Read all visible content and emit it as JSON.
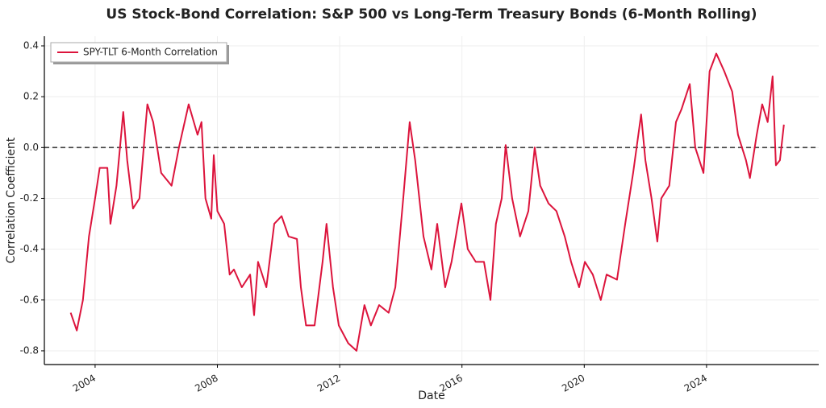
{
  "chart_data": {
    "type": "line",
    "title": "US Stock-Bond Correlation: S&P 500 vs Long-Term Treasury Bonds (6-Month Rolling)",
    "x_label": "Date",
    "y_label": "Correlation Coefficient",
    "x": [
      2003.2,
      2003.4,
      2003.6,
      2003.8,
      2004.0,
      2004.15,
      2004.4,
      2004.5,
      2004.7,
      2004.92,
      2005.05,
      2005.24,
      2005.45,
      2005.71,
      2005.9,
      2006.16,
      2006.5,
      2006.74,
      2007.06,
      2007.35,
      2007.48,
      2007.61,
      2007.8,
      2007.88,
      2008.0,
      2008.22,
      2008.4,
      2008.54,
      2008.8,
      2009.07,
      2009.2,
      2009.33,
      2009.6,
      2009.86,
      2010.1,
      2010.33,
      2010.6,
      2010.73,
      2010.9,
      2011.18,
      2011.44,
      2011.57,
      2011.78,
      2011.97,
      2012.28,
      2012.55,
      2012.81,
      2013.02,
      2013.29,
      2013.6,
      2013.82,
      2014.08,
      2014.29,
      2014.47,
      2014.74,
      2015.0,
      2015.19,
      2015.45,
      2015.66,
      2015.98,
      2016.19,
      2016.45,
      2016.72,
      2016.93,
      2017.11,
      2017.3,
      2017.43,
      2017.64,
      2017.9,
      2018.17,
      2018.38,
      2018.56,
      2018.83,
      2019.09,
      2019.36,
      2019.57,
      2019.83,
      2020.02,
      2020.28,
      2020.54,
      2020.73,
      2021.07,
      2021.34,
      2021.6,
      2021.86,
      2022.0,
      2022.2,
      2022.39,
      2022.52,
      2022.78,
      2023.0,
      2023.18,
      2023.45,
      2023.63,
      2023.9,
      2024.1,
      2024.32,
      2024.58,
      2024.84,
      2025.03,
      2025.29,
      2025.42,
      2025.64,
      2025.82,
      2026.0,
      2026.16,
      2026.27,
      2026.4,
      2026.53
    ],
    "series": [
      {
        "name": "SPY-TLT 6-Month Correlation",
        "color": "#dc143c",
        "values": [
          -0.65,
          -0.72,
          -0.6,
          -0.35,
          -0.2,
          -0.08,
          -0.08,
          -0.3,
          -0.15,
          0.14,
          -0.05,
          -0.24,
          -0.2,
          0.17,
          0.1,
          -0.1,
          -0.15,
          0.0,
          0.17,
          0.05,
          0.1,
          -0.2,
          -0.28,
          -0.03,
          -0.25,
          -0.3,
          -0.5,
          -0.48,
          -0.55,
          -0.5,
          -0.66,
          -0.45,
          -0.55,
          -0.3,
          -0.27,
          -0.35,
          -0.36,
          -0.55,
          -0.7,
          -0.7,
          -0.45,
          -0.3,
          -0.55,
          -0.7,
          -0.77,
          -0.8,
          -0.62,
          -0.7,
          -0.62,
          -0.65,
          -0.55,
          -0.2,
          0.1,
          -0.05,
          -0.35,
          -0.48,
          -0.3,
          -0.55,
          -0.45,
          -0.22,
          -0.4,
          -0.45,
          -0.45,
          -0.6,
          -0.3,
          -0.2,
          0.01,
          -0.2,
          -0.35,
          -0.25,
          0.0,
          -0.15,
          -0.22,
          -0.25,
          -0.35,
          -0.45,
          -0.55,
          -0.45,
          -0.5,
          -0.6,
          -0.5,
          -0.52,
          -0.3,
          -0.1,
          0.13,
          -0.05,
          -0.2,
          -0.37,
          -0.2,
          -0.15,
          0.1,
          0.15,
          0.25,
          0.0,
          -0.1,
          0.3,
          0.37,
          0.3,
          0.22,
          0.05,
          -0.05,
          -0.12,
          0.05,
          0.17,
          0.1,
          0.28,
          -0.07,
          -0.05,
          0.09
        ]
      }
    ],
    "hline": 0,
    "xlim": [
      2002.34,
      2027.67
    ],
    "xticks": [
      2004,
      2008,
      2012,
      2016,
      2020,
      2024
    ],
    "ylim": [
      -0.854,
      0.438
    ],
    "yticks": [
      -0.8,
      -0.6,
      -0.4,
      -0.2,
      {
        "value": 0,
        "label": "0.0"
      },
      0.2,
      0.4
    ],
    "grid": true,
    "legend": "upper left"
  }
}
